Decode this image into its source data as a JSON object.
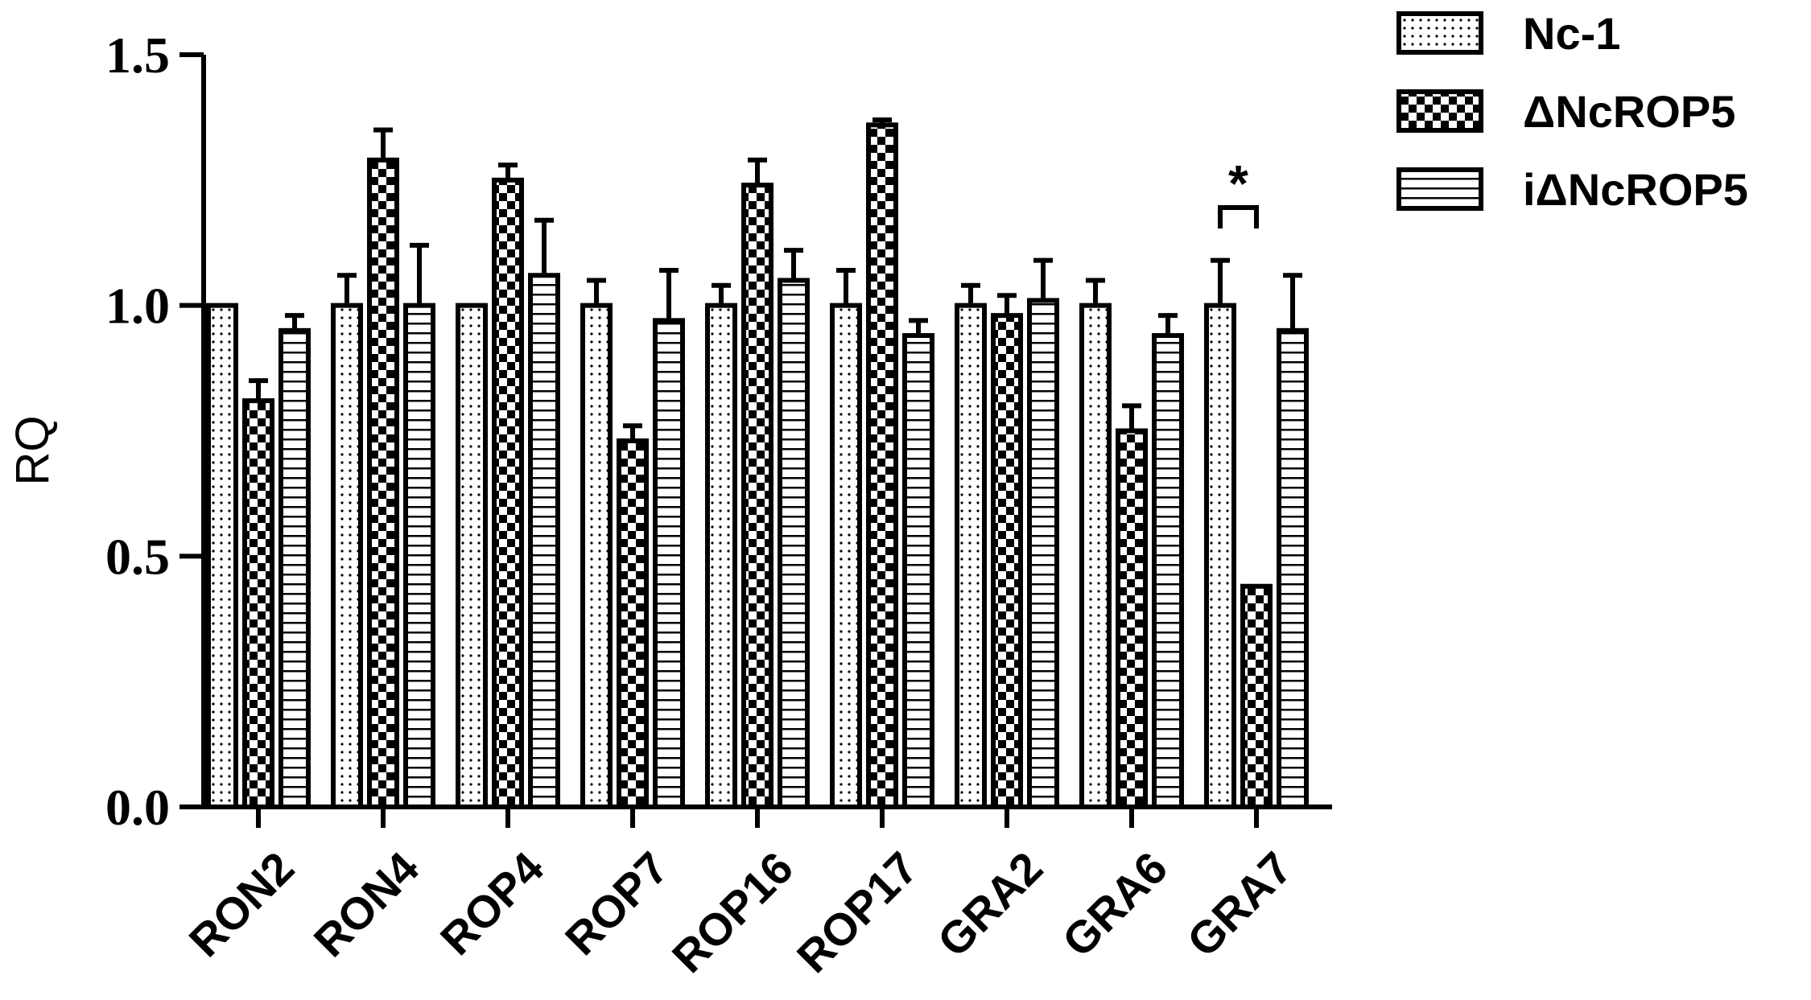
{
  "chart_data": {
    "type": "bar",
    "ylabel": "RQ",
    "xlabel": "",
    "ylim": [
      0,
      1.5
    ],
    "yticks": [
      "0.0",
      "0.5",
      "1.0",
      "1.5"
    ],
    "categories": [
      "RON2",
      "RON4",
      "ROP4",
      "ROP7",
      "ROP16",
      "ROP17",
      "GRA2",
      "GRA6",
      "GRA7"
    ],
    "series": [
      {
        "name": "Nc-1",
        "pattern": "dotted",
        "values": [
          1.0,
          1.0,
          1.0,
          1.0,
          1.0,
          1.0,
          1.0,
          1.0,
          1.0
        ],
        "errors": [
          0.0,
          0.06,
          0.0,
          0.05,
          0.04,
          0.07,
          0.04,
          0.05,
          0.09
        ]
      },
      {
        "name": "ΔNcROP5",
        "pattern": "checker",
        "values": [
          0.81,
          1.29,
          1.25,
          0.73,
          1.24,
          1.36,
          0.98,
          0.75,
          0.44
        ],
        "errors": [
          0.04,
          0.06,
          0.03,
          0.03,
          0.05,
          0.01,
          0.04,
          0.05,
          0.0
        ]
      },
      {
        "name": "iΔNcROP5",
        "pattern": "horizontal",
        "values": [
          0.95,
          1.0,
          1.06,
          0.97,
          1.05,
          0.94,
          1.01,
          0.94,
          0.95
        ],
        "errors": [
          0.03,
          0.12,
          0.11,
          0.1,
          0.06,
          0.03,
          0.08,
          0.04,
          0.11
        ]
      }
    ],
    "annotations": [
      {
        "text": "*",
        "category": "GRA7",
        "between": [
          "Nc-1",
          "ΔNcROP5"
        ]
      }
    ],
    "legend_position": "top-right",
    "grid": false
  }
}
